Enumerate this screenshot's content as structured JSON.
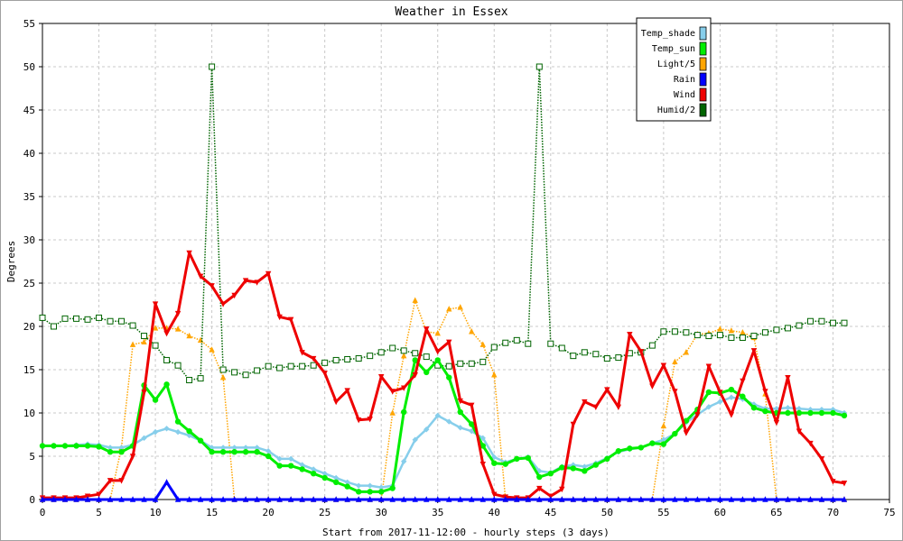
{
  "chart_data": {
    "type": "line",
    "title": "Weather in Essex",
    "xlabel": "Start from 2017-11-12:00 - hourly steps (3 days)",
    "ylabel": "Degrees",
    "xlim": [
      0,
      75
    ],
    "ylim": [
      0,
      55
    ],
    "xticks": [
      0,
      5,
      10,
      15,
      20,
      25,
      30,
      35,
      40,
      45,
      50,
      55,
      60,
      65,
      70,
      75
    ],
    "yticks": [
      0,
      5,
      10,
      15,
      20,
      25,
      30,
      35,
      40,
      45,
      50,
      55
    ],
    "grid": true,
    "legend_position": "top-right",
    "series": [
      {
        "name": "Temp_shade",
        "color": "#87ceeb",
        "marker": "diamond",
        "line": "solid",
        "values": [
          6.2,
          6.2,
          6.2,
          6.3,
          6.4,
          6.3,
          6.0,
          6.0,
          6.3,
          7.1,
          7.8,
          8.2,
          7.8,
          7.4,
          6.8,
          6.0,
          6.0,
          6.0,
          6.0,
          6.0,
          5.6,
          4.7,
          4.7,
          4.0,
          3.5,
          3.0,
          2.5,
          2.0,
          1.6,
          1.6,
          1.4,
          1.6,
          4.4,
          6.9,
          8.1,
          9.7,
          9.0,
          8.3,
          7.9,
          7.1,
          4.9,
          4.3,
          4.7,
          4.9,
          3.3,
          3.1,
          3.8,
          4.0,
          3.8,
          4.2,
          4.8,
          5.5,
          5.8,
          6.0,
          6.5,
          6.9,
          7.6,
          8.9,
          9.8,
          10.7,
          11.3,
          11.8,
          11.6,
          11.0,
          10.5,
          10.5,
          10.6,
          10.5,
          10.4,
          10.4,
          10.4,
          10.0
        ]
      },
      {
        "name": "Temp_sun",
        "color": "#00ee00",
        "marker": "circle",
        "line": "solid",
        "values": [
          6.2,
          6.2,
          6.2,
          6.2,
          6.2,
          6.1,
          5.5,
          5.5,
          6.2,
          13.2,
          11.5,
          13.3,
          9.0,
          7.9,
          6.8,
          5.5,
          5.5,
          5.5,
          5.5,
          5.5,
          5.0,
          3.9,
          3.9,
          3.5,
          3.0,
          2.5,
          2.0,
          1.5,
          0.9,
          0.9,
          0.9,
          1.3,
          10.1,
          16.1,
          14.7,
          16.1,
          14.1,
          10.1,
          8.7,
          6.2,
          4.2,
          4.1,
          4.7,
          4.8,
          2.6,
          3.0,
          3.7,
          3.6,
          3.3,
          4.0,
          4.7,
          5.6,
          5.9,
          6.0,
          6.5,
          6.4,
          7.6,
          9.1,
          10.4,
          12.4,
          12.3,
          12.7,
          11.9,
          10.6,
          10.2,
          10.0,
          10.0,
          10.0,
          10.0,
          10.0,
          10.0,
          9.7
        ]
      },
      {
        "name": "Light/5",
        "color": "#ffa500",
        "marker": "triangle-up",
        "line": "dotted",
        "values": [
          0,
          0,
          0,
          0,
          0,
          0,
          0,
          6.0,
          17.9,
          18.2,
          19.8,
          19.8,
          19.7,
          18.9,
          18.4,
          17.3,
          14.1,
          0,
          0,
          0,
          0,
          0,
          0,
          0,
          0,
          0,
          0,
          0,
          0,
          0,
          0,
          10.0,
          16.6,
          23.0,
          19.4,
          19.2,
          22.0,
          22.2,
          19.4,
          17.9,
          14.4,
          0,
          0,
          0,
          0,
          0,
          0,
          0,
          0,
          0,
          0,
          0,
          0,
          0,
          0,
          8.5,
          15.9,
          17.0,
          19.1,
          19.2,
          19.7,
          19.5,
          19.3,
          18.7,
          12.2,
          0,
          0,
          0,
          0,
          0,
          0,
          0
        ]
      },
      {
        "name": "Rain",
        "color": "#0000ff",
        "marker": "triangle-up",
        "line": "solid",
        "values": [
          0,
          0,
          0,
          0,
          0,
          0,
          0,
          0,
          0,
          0,
          0,
          2.0,
          0,
          0,
          0,
          0,
          0,
          0,
          0,
          0,
          0,
          0,
          0,
          0,
          0,
          0,
          0,
          0,
          0,
          0,
          0,
          0,
          0,
          0,
          0,
          0,
          0,
          0,
          0,
          0,
          0,
          0,
          0,
          0,
          0,
          0,
          0,
          0,
          0,
          0,
          0,
          0,
          0,
          0,
          0,
          0,
          0,
          0,
          0,
          0,
          0,
          0,
          0,
          0,
          0,
          0,
          0,
          0,
          0,
          0,
          0,
          0
        ]
      },
      {
        "name": "Wind",
        "color": "#ee0000",
        "marker": "triangle-down",
        "line": "solid",
        "values": [
          0.2,
          0.2,
          0.2,
          0.2,
          0.4,
          0.6,
          2.2,
          2.2,
          5.0,
          12.4,
          22.6,
          19.2,
          21.5,
          28.5,
          25.8,
          24.7,
          22.6,
          23.6,
          25.3,
          25.1,
          26.1,
          21.1,
          20.8,
          17.0,
          16.3,
          14.6,
          11.3,
          12.6,
          9.2,
          9.3,
          14.2,
          12.5,
          12.9,
          14.4,
          19.7,
          17.1,
          18.2,
          11.4,
          10.9,
          4.1,
          0.6,
          0.3,
          0.2,
          0.2,
          1.3,
          0.4,
          1.2,
          8.7,
          11.3,
          10.7,
          12.7,
          10.7,
          19.1,
          17.1,
          13.1,
          15.5,
          12.5,
          7.7,
          9.8,
          15.4,
          12.4,
          9.8,
          13.7,
          17.2,
          12.5,
          8.9,
          14.1,
          7.9,
          6.5,
          4.7,
          2.1,
          1.9
        ]
      },
      {
        "name": "Humid/2",
        "color": "#006400",
        "marker": "square-open",
        "line": "dotted",
        "values": [
          21.0,
          20.0,
          20.9,
          20.9,
          20.8,
          21.0,
          20.6,
          20.6,
          20.1,
          18.9,
          17.8,
          16.1,
          15.5,
          13.8,
          14.0,
          50.0,
          15.0,
          14.7,
          14.4,
          14.9,
          15.4,
          15.2,
          15.4,
          15.4,
          15.5,
          15.8,
          16.1,
          16.2,
          16.3,
          16.6,
          17.0,
          17.5,
          17.2,
          16.9,
          16.5,
          15.5,
          15.4,
          15.7,
          15.7,
          15.9,
          17.6,
          18.1,
          18.4,
          18.0,
          50.0,
          18.0,
          17.5,
          16.6,
          17.0,
          16.8,
          16.3,
          16.4,
          16.9,
          17.0,
          17.8,
          19.4,
          19.4,
          19.3,
          19.0,
          18.9,
          19.0,
          18.7,
          18.7,
          18.9,
          19.3,
          19.6,
          19.8,
          20.1,
          20.6,
          20.6,
          20.4,
          20.4
        ]
      }
    ]
  }
}
